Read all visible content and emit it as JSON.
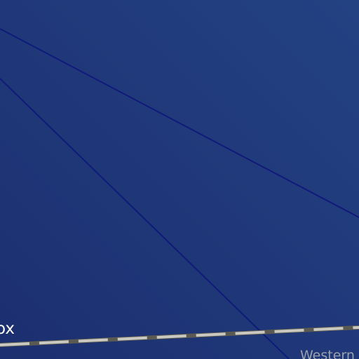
{
  "map": {
    "background_color": "#20397a",
    "boundary_line_color": "#101a7a",
    "railway_rail_color": "#c9c9c2",
    "railway_tie_color": "#5a5a52",
    "labels": {
      "partial_left": "ox",
      "western": "Western"
    }
  }
}
